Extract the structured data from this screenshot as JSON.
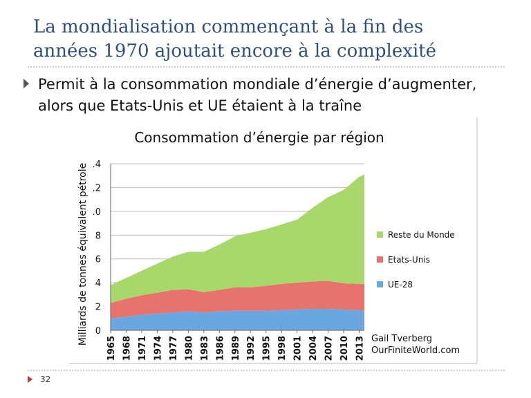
{
  "slide": {
    "title_lines": [
      "La mondialisation commençant à la fin des",
      "années 1970 ajoutait encore à la complexité"
    ],
    "bullet_lines": [
      "Permit à la consommation mondiale d’énergie d’augmenter,",
      "alors que Etats-Unis et UE étaient à la traîne"
    ],
    "page_number": "32"
  },
  "chart_data": {
    "type": "area",
    "stacked": true,
    "title": "Consommation d’énergie par région",
    "y_label": "Milliards de tonnes équivalent pétrole",
    "source_lines": [
      "Gail Tverberg",
      "OurFiniteWorld.com"
    ],
    "x": [
      1965,
      1968,
      1971,
      1974,
      1977,
      1980,
      1983,
      1986,
      1989,
      1992,
      1995,
      1998,
      2001,
      2004,
      2007,
      2010,
      2013,
      2014
    ],
    "xlim": [
      1965,
      2014
    ],
    "xticks": [
      1965,
      1968,
      1971,
      1974,
      1977,
      1980,
      1983,
      1986,
      1989,
      1992,
      1995,
      1998,
      2001,
      2004,
      2007,
      2010,
      2013
    ],
    "ylim": [
      0,
      14
    ],
    "yticks": [
      0,
      2,
      4,
      6,
      8,
      {
        "value": 10,
        "label": ".0"
      },
      {
        "value": 12,
        "label": ".2"
      },
      {
        "value": 14,
        "label": ".4"
      }
    ],
    "grid": true,
    "series": [
      {
        "name": "UE-28",
        "color": "#6aa6e0",
        "values": [
          1.0,
          1.15,
          1.3,
          1.4,
          1.5,
          1.6,
          1.5,
          1.6,
          1.65,
          1.65,
          1.65,
          1.7,
          1.75,
          1.8,
          1.8,
          1.75,
          1.7,
          1.65
        ]
      },
      {
        "name": "Etats-Unis",
        "color": "#e8726c",
        "values": [
          1.3,
          1.5,
          1.65,
          1.75,
          1.9,
          1.85,
          1.7,
          1.8,
          1.95,
          1.95,
          2.1,
          2.2,
          2.25,
          2.3,
          2.35,
          2.2,
          2.2,
          2.25
        ]
      },
      {
        "name": "Reste du Monde",
        "color": "#a8d86c",
        "values": [
          1.5,
          1.75,
          2.05,
          2.45,
          2.8,
          3.15,
          3.4,
          3.8,
          4.3,
          4.6,
          4.75,
          5.0,
          5.3,
          6.2,
          7.05,
          7.85,
          9.0,
          9.2
        ]
      }
    ]
  }
}
